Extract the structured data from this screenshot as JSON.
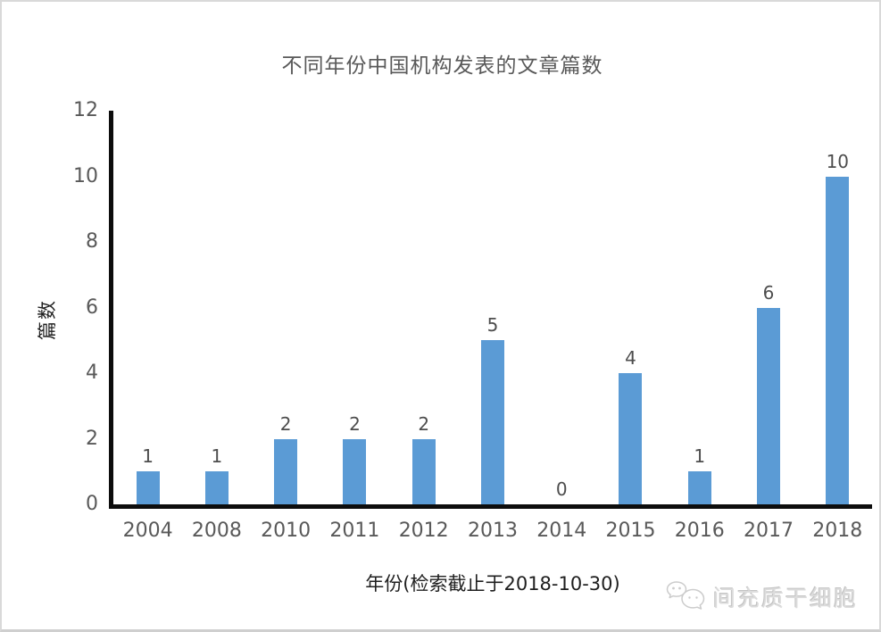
{
  "chart_data": {
    "type": "bar",
    "title": "不同年份中国机构发表的文章篇数",
    "xlabel": "年份(检索截止于2018-10-30)",
    "ylabel": "篇数",
    "categories": [
      "2004",
      "2008",
      "2010",
      "2011",
      "2012",
      "2013",
      "2014",
      "2015",
      "2016",
      "2017",
      "2018"
    ],
    "values": [
      1,
      1,
      2,
      2,
      2,
      5,
      0,
      4,
      1,
      6,
      10
    ],
    "y_ticks": [
      0,
      2,
      4,
      6,
      8,
      10,
      12
    ],
    "ylim": [
      0,
      12
    ],
    "grid": false,
    "legend": "none",
    "data_labels": true,
    "bar_color": "#5B9BD5",
    "axis_line_color": "#0d0d0d",
    "tick_label_color": "#595959"
  },
  "watermark": {
    "logo": "chat-bubbles-icon",
    "text": "间充质干细胞"
  }
}
